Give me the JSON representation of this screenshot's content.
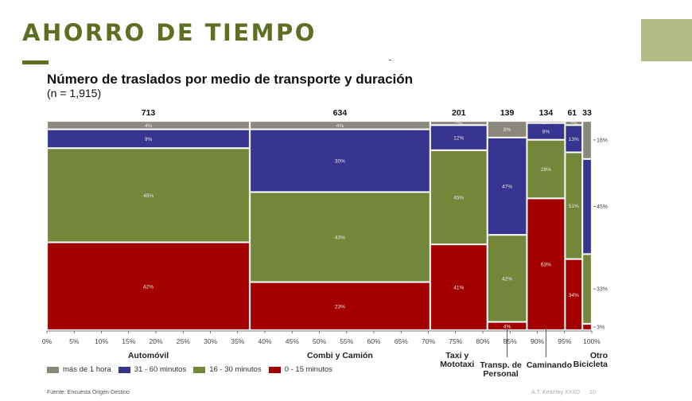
{
  "slide": {
    "title": "AHORRO DE TIEMPO",
    "source": "Fuente: Encuesta Origen-Destino",
    "credit": "A.T. Kearney XXXD",
    "page_number": "10"
  },
  "chart_data": {
    "type": "mosaic",
    "title": "Número de traslados por medio de transporte y duración",
    "subtitle": "(n = 1,915)",
    "xlabel": "",
    "ylabel": "",
    "x_ticks": [
      "0%",
      "5%",
      "10%",
      "15%",
      "20%",
      "25%",
      "30%",
      "35%",
      "40%",
      "45%",
      "50%",
      "55%",
      "60%",
      "65%",
      "70%",
      "75%",
      "80%",
      "85%",
      "90%",
      "95%",
      "100%"
    ],
    "xlim": [
      0,
      100
    ],
    "ylim": [
      0,
      100
    ],
    "grid": false,
    "legend_position": "bottom-left",
    "series": [
      {
        "name": "0 - 15 minutos",
        "color": "#a50000"
      },
      {
        "name": "16 - 30 minutos",
        "color": "#74863a"
      },
      {
        "name": "31 - 60 minutos",
        "color": "#363590"
      },
      {
        "name": "más de 1 hora",
        "color": "#8a887a"
      }
    ],
    "legend_order": [
      3,
      2,
      1,
      0
    ],
    "categories": [
      {
        "label": "Automóvil",
        "count": 713,
        "values": [
          42,
          45,
          9,
          4
        ],
        "label_level": 0
      },
      {
        "label": "Combi y Camión",
        "count": 634,
        "values": [
          23,
          43,
          30,
          4
        ],
        "label_level": 0
      },
      {
        "label": "Taxi y Mototaxi",
        "count": 201,
        "values": [
          41,
          45,
          12,
          2
        ],
        "label_level": 0
      },
      {
        "label": "Transp. de Personal",
        "count": 139,
        "values": [
          4,
          42,
          47,
          8
        ],
        "label_level": 1
      },
      {
        "label": "Caminando",
        "count": 134,
        "values": [
          63,
          28,
          8,
          1
        ],
        "label_level": 1
      },
      {
        "label": "Bicicleta",
        "count": 61,
        "values": [
          34,
          51,
          13,
          2
        ],
        "label_level": 0
      },
      {
        "label": "Otro",
        "count": 33,
        "values": [
          3,
          33,
          45,
          18
        ],
        "label_level": 0
      }
    ],
    "category_label_lines": {
      "Automóvil": [
        "Automóvil"
      ],
      "Combi y Camión": [
        "Combi y Camión"
      ],
      "Taxi y Mototaxi": [
        "Taxi y",
        "Mototaxi"
      ],
      "Transp. de Personal": [
        "Transp. de",
        "Personal"
      ],
      "Caminando": [
        "Caminando"
      ],
      "Otro Bicicleta": [
        "Otro",
        "Bicicleta"
      ]
    },
    "right_annotations": [
      "18%",
      "45%",
      "33%",
      "3%"
    ],
    "total": 1915
  }
}
